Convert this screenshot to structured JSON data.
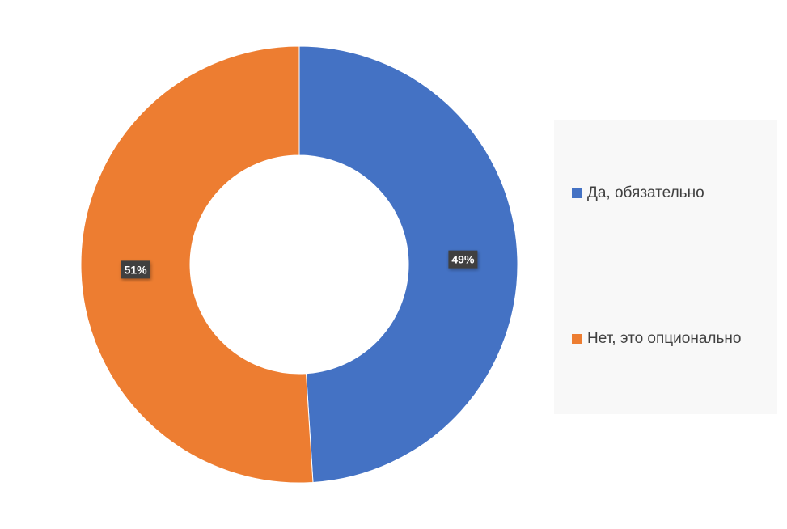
{
  "chart_data": {
    "type": "pie",
    "variant": "donut",
    "title": "",
    "categories": [
      "Да, обязательно",
      "Нет, это опционально"
    ],
    "values": [
      49,
      51
    ],
    "value_unit": "%",
    "data_labels": [
      "49%",
      "51%"
    ],
    "colors": [
      "#4472C4",
      "#ED7D31"
    ],
    "legend_position": "right"
  }
}
